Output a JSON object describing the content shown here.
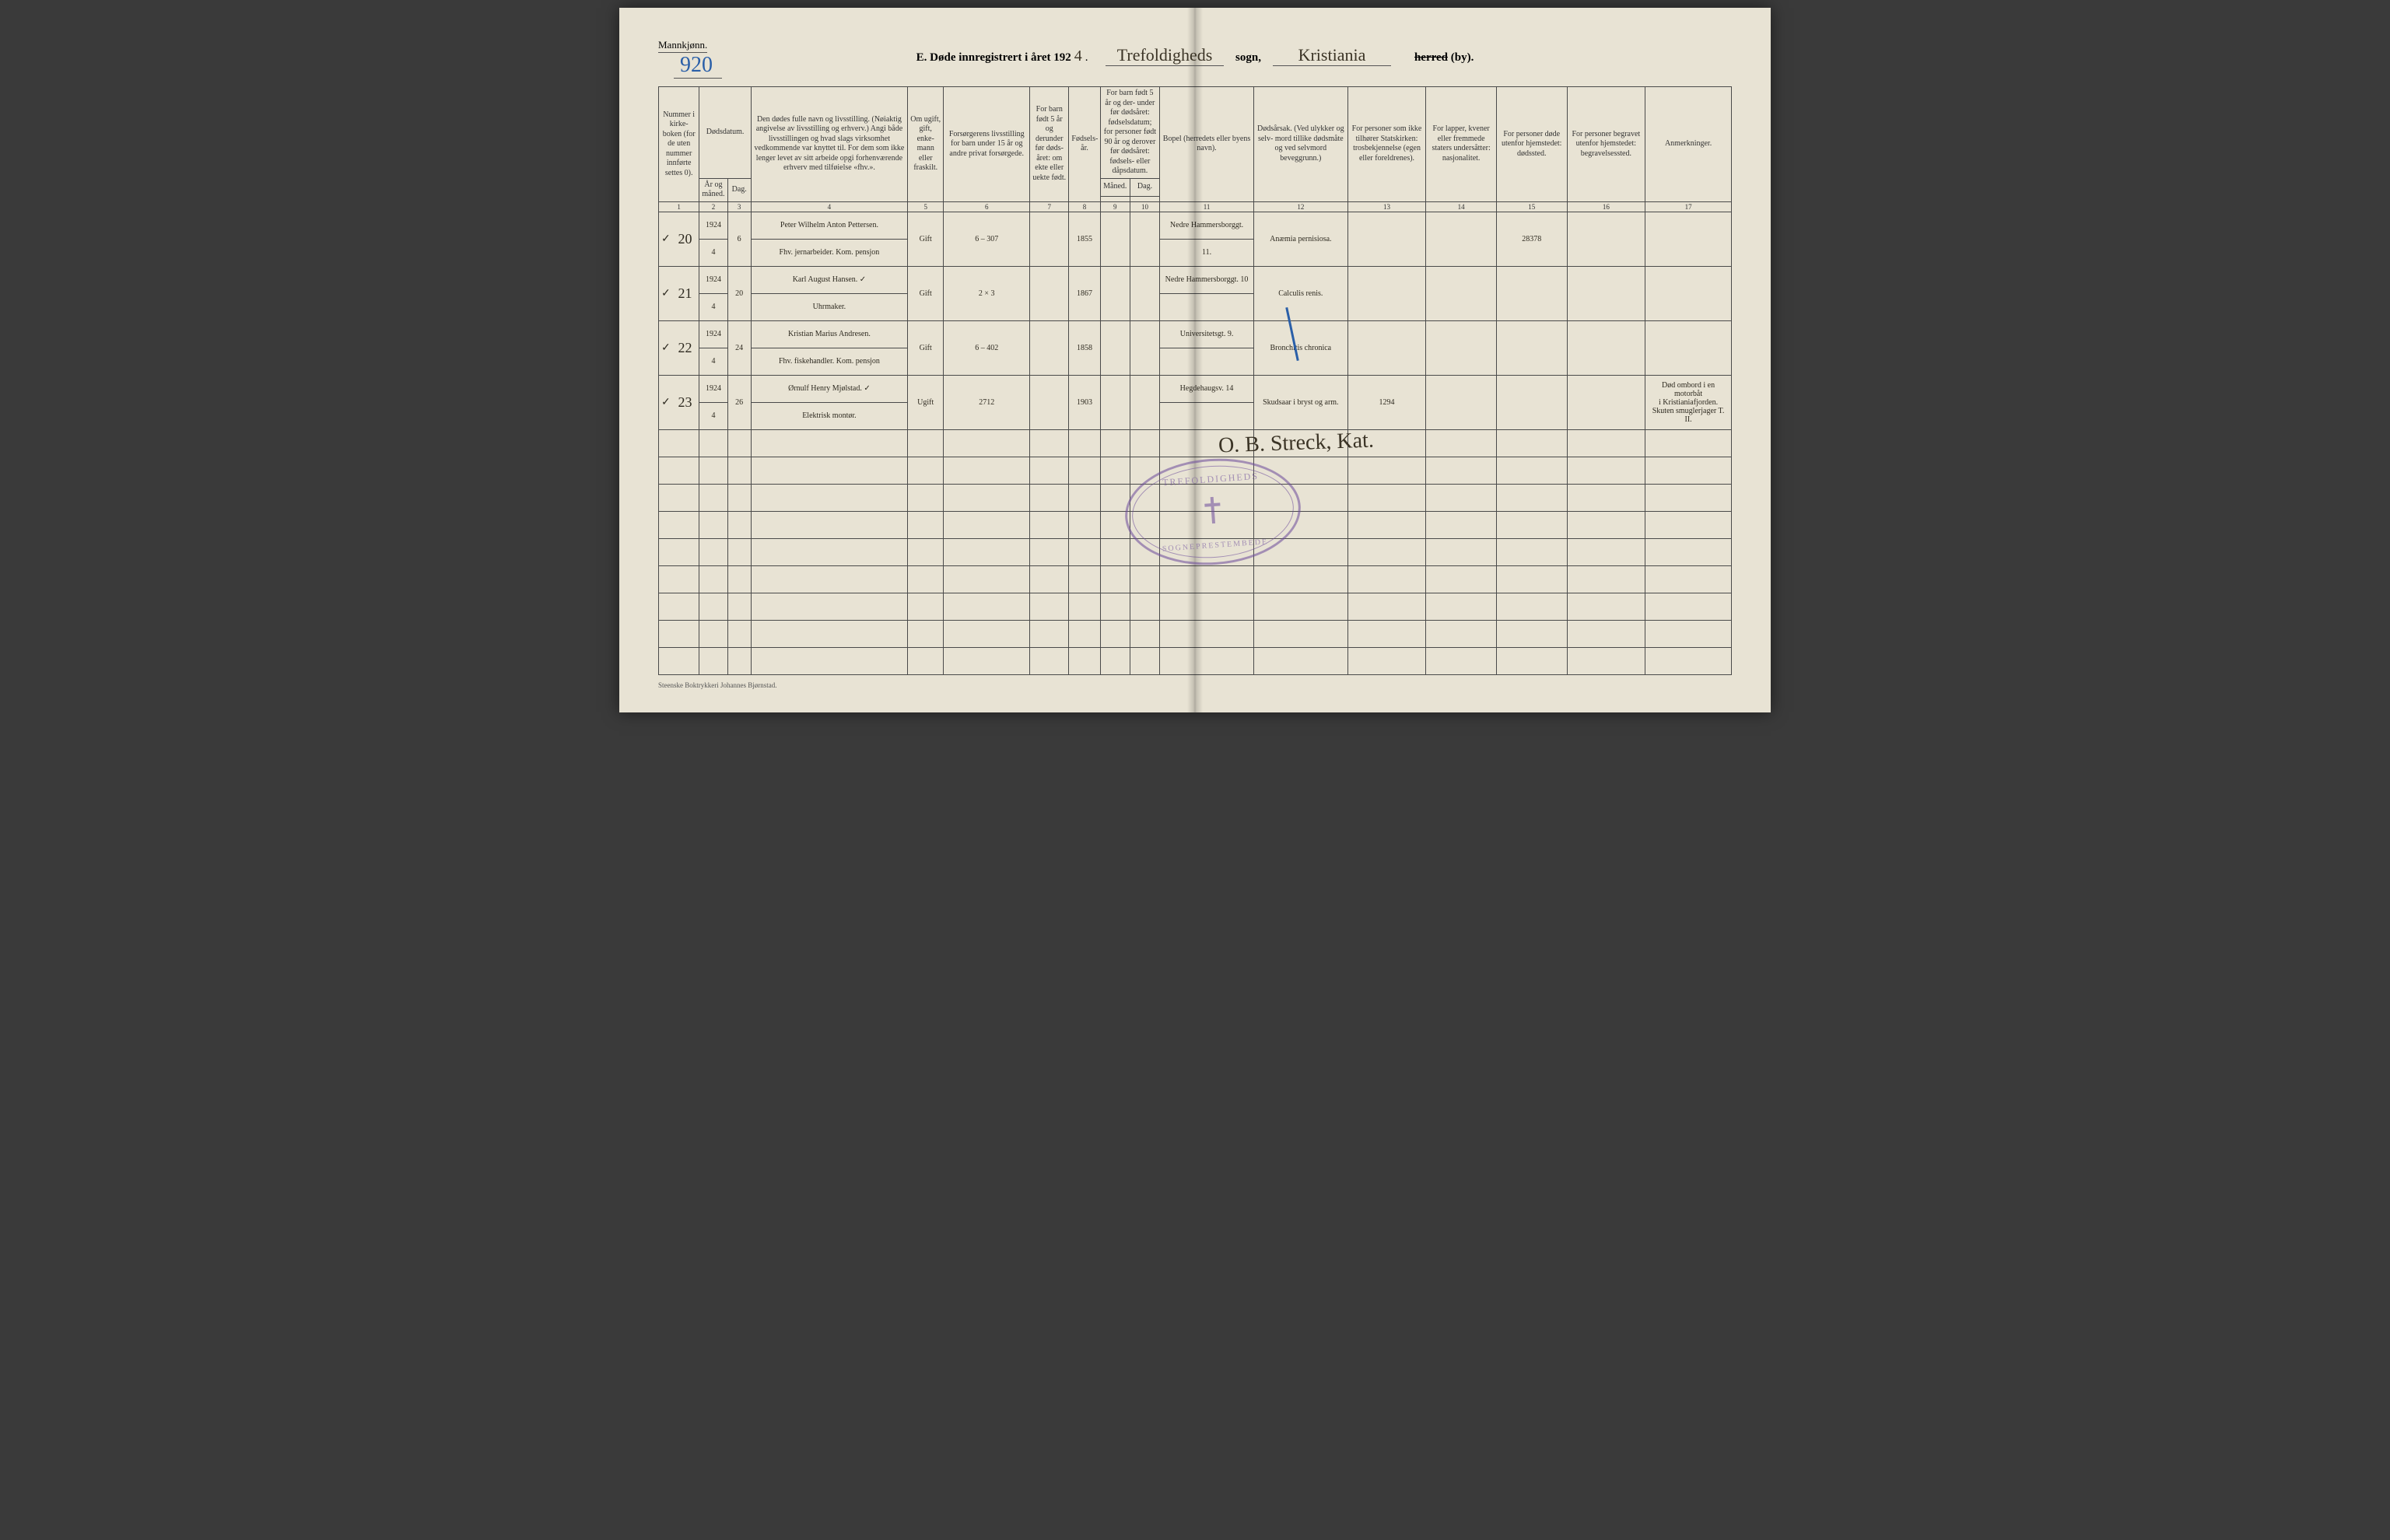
{
  "page": {
    "colors": {
      "paper": "#e8e3d4",
      "ink_print": "#333333",
      "ink_handwriting": "#2e2a20",
      "ink_blue": "#2a5fa8",
      "stamp": "#6b4a9a",
      "rule": "#4a4a4a"
    },
    "fontsizes": {
      "header_print": 10,
      "title_print": 15,
      "handwriting_name": 17,
      "handwriting_small": 14,
      "pagenum": 28,
      "signature": 28
    }
  },
  "header": {
    "gender_label": "Mannkjønn.",
    "page_number_hw": "920",
    "title_prefix": "E.   Døde innregistrert i året 192",
    "year_digit_hw": "4",
    "title_dot": ".",
    "parish_hw": "Trefoldigheds",
    "label_sogn": "sogn,",
    "city_hw": "Kristiania",
    "label_herred_strike": "herred",
    "label_by": "(by)."
  },
  "columns": {
    "h1": "Nummer i kirke-\nboken (for de uten nummer innførte settes 0).",
    "h_date": "Dødsdatum.",
    "h2": "År og måned.",
    "h3": "Dag.",
    "h4": "Den dødes fulle navn og livsstilling.\n(Nøiaktig angivelse av livsstilling og erhverv.)\nAngi både livsstillingen og hvad slags virksomhet vedkommende var knyttet til.\nFor dem som ikke lenger levet av sitt arbeide opgi forhenværende erhverv med tilføielse «fhv.».",
    "h5": "Om ugift, gift, enke-\nmann eller fraskilt.",
    "h6": "Forsørgerens livsstilling\nfor barn under 15 år og andre privat forsørgede.",
    "h7": "For barn født 5 år og derunder før døds-\nåret: om ekte eller uekte født.",
    "h8": "Fødsels-\når.",
    "h9_10": "For barn født 5 år og der-\nunder før dødsåret: fødselsdatum;\nfor personer født 90 år og derover før dødsåret: fødsels- eller dåpsdatum.",
    "h9": "Måned.",
    "h10": "Dag.",
    "h11": "Bopel\n(herredets eller byens navn).",
    "h12": "Dødsårsak.\n(Ved ulykker og selv-\nmord tillike dødsmåte og ved selvmord beveggrunn.)",
    "h13": "For personer som ikke tilhører Statskirken:\ntrosbekjennelse (egen eller foreldrenes).",
    "h14": "For lapper, kvener eller fremmede staters undersåtter:\nnasjonalitet.",
    "h15": "For personer døde utenfor hjemstedet:\ndødssted.",
    "h16": "For personer begravet utenfor hjemstedet:\nbegravelsessted.",
    "h17": "Anmerkninger.",
    "nums": [
      "1",
      "2",
      "3",
      "4",
      "5",
      "6",
      "7",
      "8",
      "9",
      "10",
      "11",
      "12",
      "13",
      "14",
      "15",
      "16",
      "17"
    ]
  },
  "rows": [
    {
      "tick": "✓",
      "num": "20",
      "year_month_top": "1924",
      "year_month_bot": "4",
      "day": "6",
      "name_top": "Peter Wilhelm Anton Pettersen.",
      "name_bot": "Fhv. jernarbeider.  Kom. pensjon",
      "status": "Gift",
      "forsorger": "6 – 307",
      "c7": "",
      "birth": "1855",
      "c9": "",
      "c10": "",
      "bopel_top": "Nedre Hammersborggt.",
      "bopel_bot": "11.",
      "cause": "Anæmia pernisiosa.",
      "c13": "",
      "c14": "",
      "c15": "28378",
      "c16": "",
      "c17": ""
    },
    {
      "tick": "✓",
      "num": "21",
      "year_month_top": "1924",
      "year_month_bot": "4",
      "day": "20",
      "name_top": "Karl August Hansen.           ✓",
      "name_bot": "Uhrmaker.",
      "status": "Gift",
      "forsorger": "2 × 3",
      "c7": "",
      "birth": "1867",
      "c9": "",
      "c10": "",
      "bopel_top": "Nedre Hammersborggt. 10",
      "bopel_bot": "",
      "cause": "Calculis renis.",
      "c13": "",
      "c14": "",
      "c15": "",
      "c16": "",
      "c17": ""
    },
    {
      "tick": "✓",
      "num": "22",
      "year_month_top": "1924",
      "year_month_bot": "4",
      "day": "24",
      "name_top": "Kristian Marius Andresen.",
      "name_bot": "Fhv. fiskehandler.  Kom. pensjon",
      "status": "Gift",
      "forsorger": "6 – 402",
      "c7": "",
      "birth": "1858",
      "c9": "",
      "c10": "",
      "bopel_top": "Universitetsgt. 9.",
      "bopel_bot": "",
      "cause": "Bronchitis chronica",
      "c13": "",
      "c14": "",
      "c15": "",
      "c16": "",
      "c17": ""
    },
    {
      "tick": "✓",
      "num": "23",
      "year_month_top": "1924",
      "year_month_bot": "4",
      "day": "26",
      "name_top": "Ørnulf Henry Mjølstad.       ✓",
      "name_bot": "Elektrisk montør.",
      "status": "Ugift",
      "forsorger": "2712",
      "c7": "",
      "birth": "1903",
      "c9": "",
      "c10": "",
      "bopel_top": "Hegdehaugsv. 14",
      "bopel_bot": "",
      "cause": "Skudsaar i bryst og arm.",
      "c13": "1294",
      "c14": "",
      "c15": "",
      "c16": "",
      "c17_top": "Død ombord i en motorbåt",
      "c17_mid": "i Kristianiafjorden.",
      "c17_bot": "Skuten smuglerjager T. II."
    }
  ],
  "blank_rows": 9,
  "signature": "O. B. Streck,  Kat.",
  "stamp": {
    "top": "TREFOLDIGHEDS",
    "bottom": "SOGNEPRESTEMBEDE"
  },
  "footer": "Steenske Boktrykkeri Johannes Bjørnstad."
}
